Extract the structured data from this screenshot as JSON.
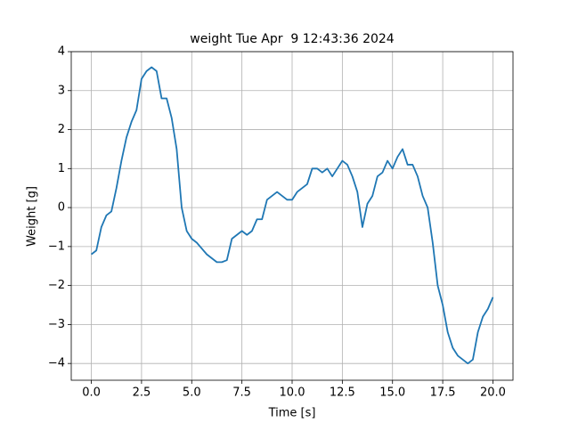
{
  "chart_data": {
    "type": "line",
    "title": "weight Tue Apr  9 12:43:36 2024",
    "x_label": "Time [s]",
    "y_label": "Weight [g]",
    "x": [
      0,
      0.25,
      0.5,
      0.75,
      1,
      1.25,
      1.5,
      1.75,
      2,
      2.25,
      2.5,
      2.75,
      3,
      3.25,
      3.5,
      3.75,
      4,
      4.25,
      4.5,
      4.75,
      5,
      5.25,
      5.5,
      5.75,
      6,
      6.25,
      6.5,
      6.75,
      7,
      7.25,
      7.5,
      7.75,
      8,
      8.25,
      8.5,
      8.75,
      9,
      9.25,
      9.5,
      9.75,
      10,
      10.25,
      10.5,
      10.75,
      11,
      11.25,
      11.5,
      11.75,
      12,
      12.25,
      12.5,
      12.75,
      13,
      13.25,
      13.5,
      13.75,
      14,
      14.25,
      14.5,
      14.75,
      15,
      15.25,
      15.5,
      15.75,
      16,
      16.25,
      16.5,
      16.75,
      17,
      17.25,
      17.5,
      17.75,
      18,
      18.25,
      18.5,
      18.75,
      19,
      19.25,
      19.5,
      19.75,
      20
    ],
    "series": [
      {
        "color": "#1f77b4",
        "values": [
          -1.2,
          -1.1,
          -0.5,
          -0.2,
          -0.1,
          0.5,
          1.2,
          1.8,
          2.2,
          2.5,
          3.3,
          3.5,
          3.6,
          3.5,
          2.8,
          2.8,
          2.3,
          1.5,
          0,
          -0.6,
          -0.8,
          -0.9,
          -1.05,
          -1.2,
          -1.3,
          -1.4,
          -1.4,
          -1.35,
          -0.8,
          -0.7,
          -0.6,
          -0.7,
          -0.6,
          -0.3,
          -0.3,
          0.2,
          0.3,
          0.4,
          0.3,
          0.2,
          0.2,
          0.4,
          0.5,
          0.6,
          1.0,
          1.0,
          0.9,
          1.0,
          0.8,
          1.0,
          1.2,
          1.1,
          0.8,
          0.4,
          -0.5,
          0.1,
          0.3,
          0.8,
          0.9,
          1.2,
          1.0,
          1.3,
          1.5,
          1.1,
          1.1,
          0.8,
          0.3,
          0,
          -0.9,
          -2.0,
          -2.5,
          -3.2,
          -3.6,
          -3.8,
          -3.9,
          -4.0,
          -3.9,
          -3.2,
          -2.8,
          -2.6,
          -2.3
        ]
      }
    ],
    "xlim": [
      -1.0,
      21.0
    ],
    "ylim": [
      -4.43,
      4.0
    ],
    "xticks": [
      {
        "value": 0,
        "label": "0.0"
      },
      {
        "value": 2.5,
        "label": "2.5"
      },
      {
        "value": 5,
        "label": "5.0"
      },
      {
        "value": 7.5,
        "label": "7.5"
      },
      {
        "value": 10,
        "label": "10.0"
      },
      {
        "value": 12.5,
        "label": "12.5"
      },
      {
        "value": 15,
        "label": "15.0"
      },
      {
        "value": 17.5,
        "label": "17.5"
      },
      {
        "value": 20,
        "label": "20.0"
      }
    ],
    "yticks": [
      {
        "value": -4,
        "label": "−4"
      },
      {
        "value": -3,
        "label": "−3"
      },
      {
        "value": -2,
        "label": "−2"
      },
      {
        "value": -1,
        "label": "−1"
      },
      0,
      1,
      2,
      3,
      4
    ],
    "grid": true
  }
}
